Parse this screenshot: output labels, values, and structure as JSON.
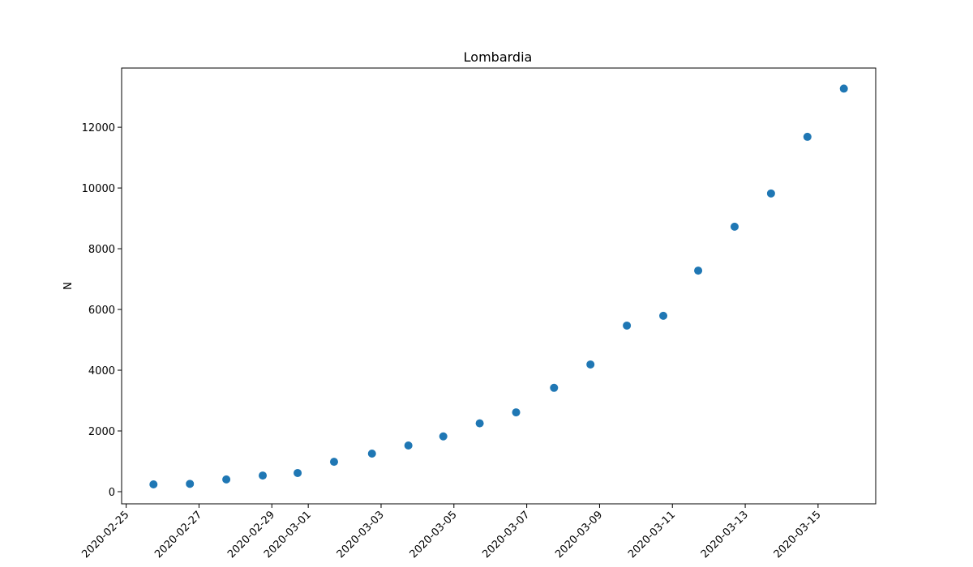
{
  "chart_data": {
    "type": "scatter",
    "title": "Lombardia",
    "xlabel": "",
    "ylabel": "N",
    "x": [
      "2020-02-25T18:00",
      "2020-02-26T18:00",
      "2020-02-27T18:00",
      "2020-02-28T18:00",
      "2020-02-29T17:00",
      "2020-03-01T17:00",
      "2020-03-02T18:00",
      "2020-03-03T18:00",
      "2020-03-04T17:00",
      "2020-03-05T17:00",
      "2020-03-06T17:00",
      "2020-03-07T18:00",
      "2020-03-08T18:00",
      "2020-03-09T18:00",
      "2020-03-10T18:00",
      "2020-03-11T17:00",
      "2020-03-12T17:00",
      "2020-03-13T17:00",
      "2020-03-14T17:00",
      "2020-03-15T17:00"
    ],
    "y": [
      240,
      258,
      403,
      531,
      615,
      984,
      1254,
      1520,
      1820,
      2251,
      2612,
      3420,
      4189,
      5469,
      5791,
      7280,
      8725,
      9820,
      11685,
      13272
    ],
    "xticks": [
      "2020-02-25",
      "2020-02-27",
      "2020-02-29",
      "2020-03-01",
      "2020-03-03",
      "2020-03-05",
      "2020-03-07",
      "2020-03-09",
      "2020-03-11",
      "2020-03-13",
      "2020-03-15"
    ],
    "yticks": [
      0,
      2000,
      4000,
      6000,
      8000,
      10000,
      12000
    ],
    "xlim": [
      "2020-02-24T21:00",
      "2020-03-16T14:00"
    ],
    "ylim": [
      -400,
      13950
    ],
    "marker_color": "#1f77b4",
    "grid": false
  }
}
